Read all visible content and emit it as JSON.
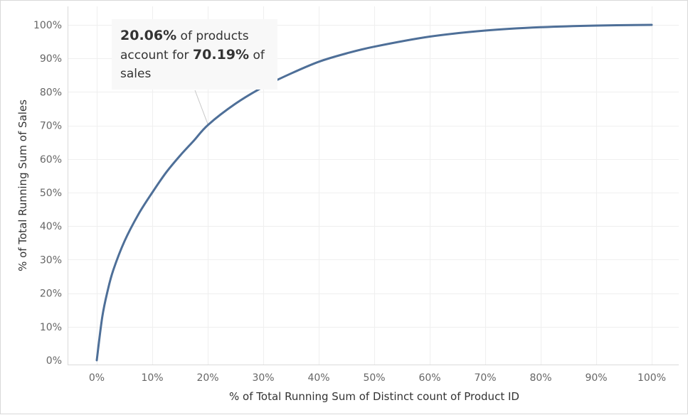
{
  "chart_data": {
    "type": "line",
    "xlabel": "% of Total Running Sum of Distinct count of Product ID",
    "ylabel": "% of Total Running Sum of Sales",
    "xlim": [
      0,
      100
    ],
    "ylim": [
      0,
      100
    ],
    "x_ticks": [
      "0%",
      "10%",
      "20%",
      "30%",
      "40%",
      "50%",
      "60%",
      "70%",
      "80%",
      "90%",
      "100%"
    ],
    "y_ticks": [
      "0%",
      "10%",
      "20%",
      "30%",
      "40%",
      "50%",
      "60%",
      "70%",
      "80%",
      "90%",
      "100%"
    ],
    "grid": true,
    "color": "#4e6f98",
    "series": [
      {
        "x": [
          0,
          1,
          2,
          3,
          5,
          7.5,
          10,
          12.5,
          15,
          17.5,
          20.06,
          25,
          30,
          35,
          40,
          45,
          50,
          60,
          70,
          80,
          90,
          100
        ],
        "values": [
          0,
          13,
          21,
          27,
          35.5,
          43.5,
          50,
          56,
          61,
          65.5,
          70.19,
          76.5,
          81.5,
          85.5,
          89,
          91.5,
          93.5,
          96.5,
          98.3,
          99.3,
          99.8,
          100
        ]
      }
    ],
    "annotation": {
      "x": 20.06,
      "y": 70.19,
      "value_products": "20.06%",
      "text_1": "of products",
      "text_2": "account for",
      "value_sales": "70.19%",
      "text_3": "of",
      "text_4": "sales"
    }
  }
}
